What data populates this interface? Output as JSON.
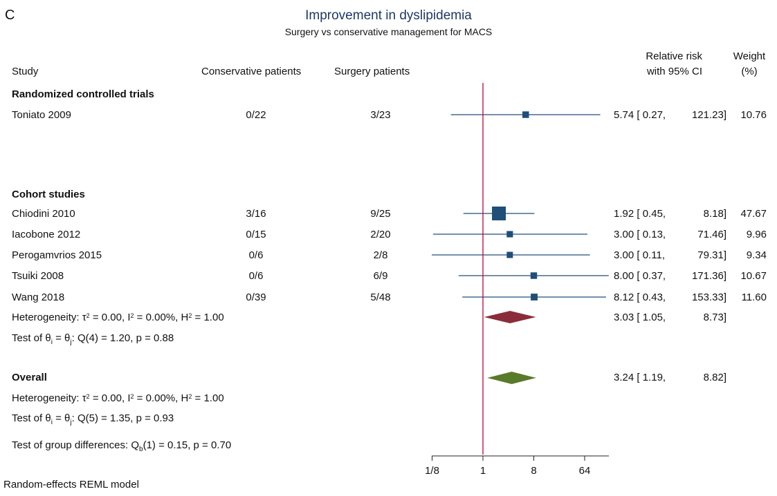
{
  "panel_letter": "C",
  "header": {
    "study": "Study",
    "conservative": "Conservative patients",
    "surgery": "Surgery patients",
    "rr_line1": "Relative risk",
    "rr_line2": "with 95% CI",
    "weight_line1": "Weight",
    "weight_line2": "(%)"
  },
  "footer": "Random-effects REML model",
  "chart_data": {
    "type": "forest",
    "title": "Improvement in dyslipidemia",
    "subtitle": "Surgery vs conservative management for MACS",
    "x_scale": "log2",
    "x_ticks": [
      {
        "value": 0.125,
        "label": "1/8"
      },
      {
        "value": 1,
        "label": "1"
      },
      {
        "value": 8,
        "label": "8"
      },
      {
        "value": 64,
        "label": "64"
      }
    ],
    "null_line": 1,
    "colors": {
      "marker": "#1f4e79",
      "ci": "#1f4e79",
      "null_line": "#c00040",
      "subgroup_diamond": "#8b2c3a",
      "overall_diamond": "#5a7a2a"
    },
    "groups": [
      {
        "name": "Randomized controlled trials",
        "studies": [
          {
            "study": "Toniato 2009",
            "conservative": "0/22",
            "surgery": "3/23",
            "rr": 5.74,
            "lo": 0.27,
            "hi": 121.23,
            "rr_text": "5.74",
            "lo_text": "0.27",
            "hi_text": "121.23",
            "weight": "10.76"
          }
        ]
      },
      {
        "name": "Cohort studies",
        "studies": [
          {
            "study": "Chiodini 2010",
            "conservative": "3/16",
            "surgery": "9/25",
            "rr": 1.92,
            "lo": 0.45,
            "hi": 8.18,
            "rr_text": "1.92",
            "lo_text": "0.45",
            "hi_text": "8.18",
            "weight": "47.67"
          },
          {
            "study": "Iacobone 2012",
            "conservative": "0/15",
            "surgery": "2/20",
            "rr": 3.0,
            "lo": 0.13,
            "hi": 71.46,
            "rr_text": "3.00",
            "lo_text": "0.13",
            "hi_text": "71.46",
            "weight": "9.96"
          },
          {
            "study": "Perogamvrios 2015",
            "conservative": "0/6",
            "surgery": "2/8",
            "rr": 3.0,
            "lo": 0.11,
            "hi": 79.31,
            "rr_text": "3.00",
            "lo_text": "0.11",
            "hi_text": "79.31",
            "weight": "9.34"
          },
          {
            "study": "Tsuiki 2008",
            "conservative": "0/6",
            "surgery": "6/9",
            "rr": 8.0,
            "lo": 0.37,
            "hi": 171.36,
            "rr_text": "8.00",
            "lo_text": "0.37",
            "hi_text": "171.36",
            "weight": "10.67"
          },
          {
            "study": "Wang 2018",
            "conservative": "0/39",
            "surgery": "5/48",
            "rr": 8.12,
            "lo": 0.43,
            "hi": 153.33,
            "rr_text": "8.12",
            "lo_text": "0.43",
            "hi_text": "153.33",
            "weight": "11.60"
          }
        ],
        "pooled": {
          "rr": 3.03,
          "lo": 1.05,
          "hi": 8.73,
          "rr_text": "3.03",
          "lo_text": "1.05",
          "hi_text": "8.73"
        },
        "heterogeneity": {
          "tau2": "0.00",
          "i2": "0.00%",
          "h2": "1.00"
        },
        "test": {
          "df": "4",
          "q": "1.20",
          "p": "0.88"
        }
      }
    ],
    "overall": {
      "label": "Overall",
      "rr": 3.24,
      "lo": 1.19,
      "hi": 8.82,
      "rr_text": "3.24",
      "lo_text": "1.19",
      "hi_text": "8.82",
      "heterogeneity": {
        "tau2": "0.00",
        "i2": "0.00%",
        "h2": "1.00"
      },
      "test": {
        "df": "5",
        "q": "1.35",
        "p": "0.93"
      }
    },
    "group_differences": {
      "df": "1",
      "q": "0.15",
      "p": "0.70"
    }
  }
}
